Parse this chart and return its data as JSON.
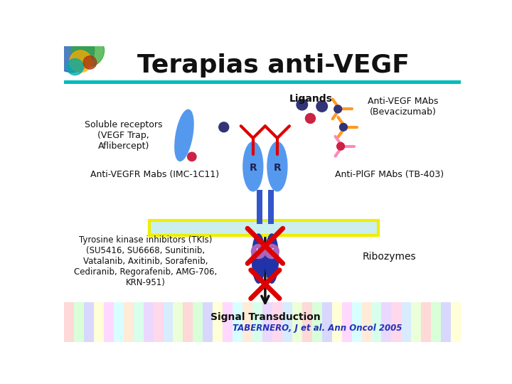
{
  "title": "Terapias anti-VEGF",
  "title_fontsize": 26,
  "title_fontweight": "bold",
  "bg_color": "#ffffff",
  "labels": {
    "soluble_receptors": "Soluble receptors\n(VEGF Trap,\nAflibercept)",
    "ligands": "Ligands",
    "anti_vegf_mabs": "Anti-VEGF MAbs\n(Bevacizumab)",
    "anti_vegfr_mabs": "Anti-VEGFR Mabs (IMC-1C11)",
    "anti_plgf_mabs": "Anti-PlGF MAbs (TB-403)",
    "tki": "Tyrosine kinase inhibitors (TKIs)\n(SU5416, SU6668, Sunitinib,\nVatalanib, Axitinib, Sorafenib,\nCediranib, Regorafenib, AMG-706,\nKRN-951)",
    "ribozymes": "Ribozymes",
    "signal": "Signal Transduction",
    "citation": "TABERNERO, J et al. Ann Oncol 2005"
  },
  "colors": {
    "blue_receptor": "#5599EE",
    "dark_navy": "#2233AA",
    "red": "#DD0000",
    "pink_antibody": "#FF88BB",
    "orange_antibody": "#FF9922",
    "dark_circle": "#333377",
    "pink_circle": "#CC2244",
    "membrane_fill": "#CCEEEE",
    "membrane_border": "#EEEE00",
    "teal_bar": "#00BBBB",
    "blue_connector": "#3355CC",
    "purple_kinase": "#AA66BB"
  },
  "figsize": [
    7.2,
    5.4
  ],
  "dpi": 100
}
